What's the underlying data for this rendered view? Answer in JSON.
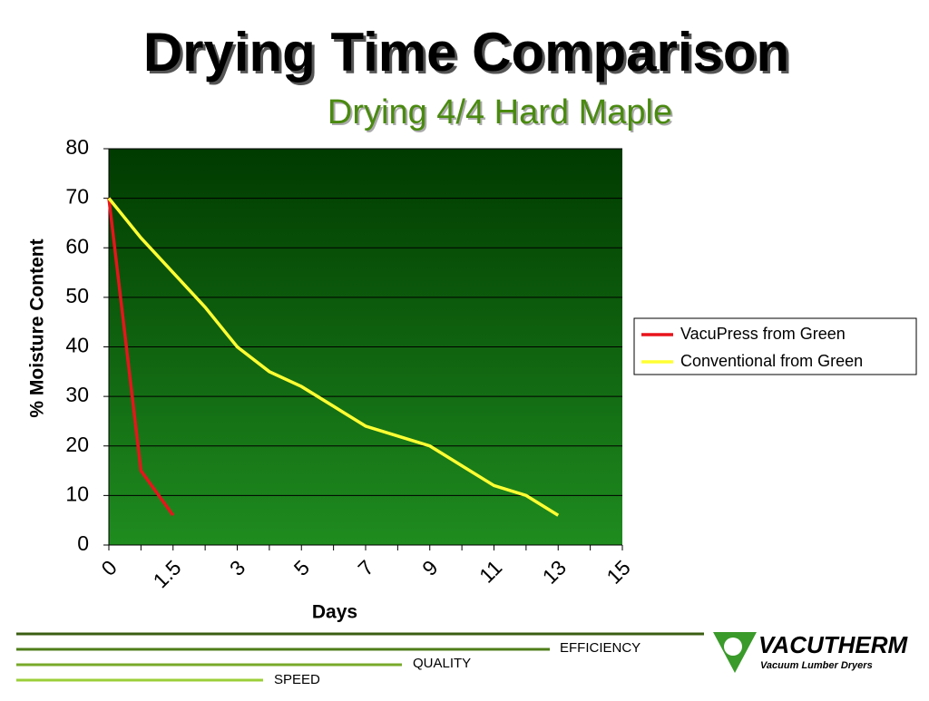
{
  "chart_data": {
    "type": "line",
    "title": "Drying Time Comparison",
    "subtitle": "Drying 4/4 Hard Maple",
    "y_label": "% Moisture Content",
    "x_label": "Days",
    "categories": [
      "0",
      null,
      "1.5",
      null,
      "3",
      null,
      "5",
      null,
      "7",
      null,
      "9",
      null,
      "11",
      null,
      "13",
      null,
      "15"
    ],
    "series": [
      {
        "name": "VacuPress from Green",
        "color": "#e8141c",
        "values": [
          70,
          15,
          6,
          null,
          null,
          null,
          null,
          null,
          null,
          null,
          null,
          null,
          null,
          null,
          null,
          null,
          null
        ]
      },
      {
        "name": "Conventional from Green",
        "color": "#ffff33",
        "values": [
          70,
          62,
          55,
          48,
          40,
          35,
          32,
          28,
          24,
          22,
          20,
          16,
          12,
          10,
          6,
          null,
          null
        ]
      }
    ],
    "ylim": [
      0,
      80
    ],
    "yticks": [
      0,
      10,
      20,
      30,
      40,
      50,
      60,
      70,
      80
    ],
    "grid": true,
    "legend": "right"
  },
  "footer": {
    "labels": [
      "EFFICIENCY",
      "QUALITY",
      "SPEED"
    ],
    "logo": "VACUTHERM",
    "tagline": "Vacuum Lumber Dryers"
  }
}
